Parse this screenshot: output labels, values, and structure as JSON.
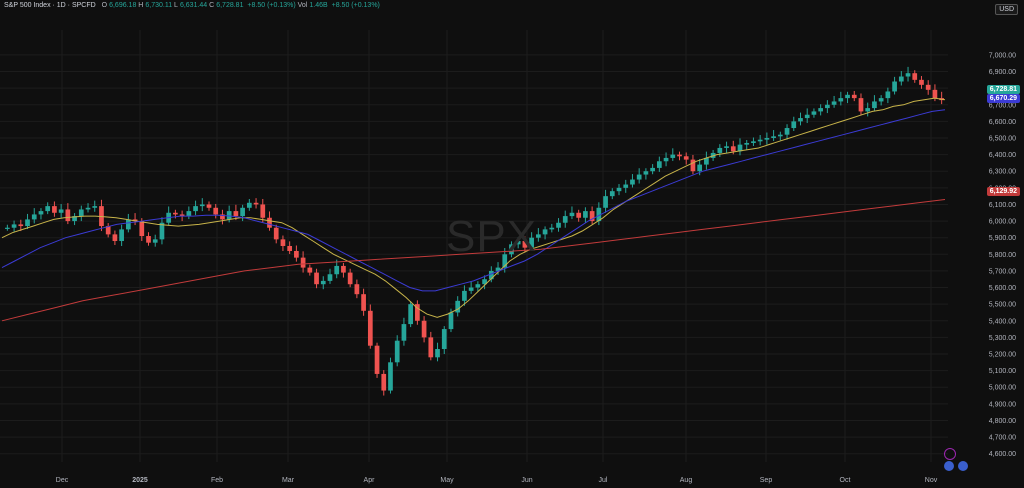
{
  "legend": {
    "symbol": "S&P 500 Index · 1D · SPCFD",
    "open_label": "O",
    "open": "6,696.18",
    "high_label": "H",
    "high": "6,730.11",
    "low_label": "L",
    "low": "6,631.44",
    "close_label": "C",
    "close": "6,728.81",
    "change": "+8.50 (+0.13%)",
    "vol_label": "Vol",
    "vol": "1.46B",
    "change2": "+8.50 (+0.13%)"
  },
  "currency": "USD",
  "watermark": "SPX",
  "badges": {
    "price": "6,728.81",
    "ma_blue": "6,670.29",
    "ma_red": "6,129.92"
  },
  "colors": {
    "up": "#26a69a",
    "down": "#ef5350",
    "ma_short": "#c8b44a",
    "ma_mid": "#3b3bd4",
    "ma_long": "#c23b3b"
  },
  "chart_data": {
    "type": "line",
    "title": "",
    "ylim": [
      4550,
      7150
    ],
    "y_ticks": [
      4600,
      4700,
      4800,
      4900,
      5000,
      5100,
      5200,
      5300,
      5400,
      5500,
      5600,
      5700,
      5800,
      5900,
      6000,
      6100,
      6200,
      6300,
      6400,
      6500,
      6600,
      6700,
      6800,
      6900,
      7000
    ],
    "x_labels": [
      "Dec",
      "2025",
      "Feb",
      "Mar",
      "Apr",
      "May",
      "Jun",
      "Jul",
      "Aug",
      "Sep",
      "Oct",
      "Nov"
    ],
    "price_series": [
      5960,
      5980,
      5970,
      6010,
      6040,
      6060,
      6090,
      6050,
      6070,
      6000,
      6030,
      6070,
      6080,
      6090,
      5970,
      5920,
      5880,
      5950,
      6010,
      6000,
      5910,
      5870,
      5890,
      5990,
      6050,
      6040,
      6030,
      6060,
      6090,
      6100,
      6080,
      6040,
      6010,
      6060,
      6030,
      6080,
      6110,
      6100,
      6020,
      5960,
      5890,
      5850,
      5820,
      5780,
      5720,
      5690,
      5620,
      5640,
      5680,
      5730,
      5690,
      5620,
      5560,
      5460,
      5250,
      5080,
      4980,
      5150,
      5280,
      5380,
      5500,
      5400,
      5300,
      5180,
      5230,
      5350,
      5450,
      5520,
      5580,
      5600,
      5620,
      5650,
      5700,
      5720,
      5800,
      5860,
      5880,
      5840,
      5900,
      5920,
      5950,
      5960,
      5990,
      6030,
      6050,
      6020,
      6060,
      6000,
      6080,
      6150,
      6180,
      6200,
      6220,
      6250,
      6280,
      6300,
      6320,
      6360,
      6380,
      6400,
      6390,
      6370,
      6300,
      6340,
      6380,
      6410,
      6440,
      6450,
      6420,
      6460,
      6470,
      6480,
      6490,
      6500,
      6510,
      6520,
      6560,
      6600,
      6620,
      6640,
      6660,
      6680,
      6700,
      6720,
      6740,
      6760,
      6740,
      6660,
      6680,
      6720,
      6740,
      6780,
      6840,
      6870,
      6890,
      6850,
      6820,
      6790,
      6740,
      6728
    ],
    "series": [
      {
        "values": [
          5900,
          5930,
          5950,
          5970,
          5990,
          6010,
          6020,
          6025,
          6030,
          6030,
          6025,
          6020,
          6010,
          6000,
          5990,
          5980,
          5975,
          5970,
          5975,
          5980,
          5990,
          6000,
          6010,
          6020,
          6020,
          6010,
          6000,
          5990,
          5960,
          5920,
          5880,
          5840,
          5800,
          5770,
          5740,
          5710,
          5680,
          5640,
          5590,
          5540,
          5480,
          5440,
          5420,
          5440,
          5470,
          5520,
          5580,
          5640,
          5700,
          5760,
          5800,
          5830,
          5850,
          5870,
          5890,
          5910,
          5940,
          5980,
          6020,
          6070,
          6110,
          6150,
          6190,
          6230,
          6270,
          6300,
          6330,
          6360,
          6380,
          6400,
          6410,
          6420,
          6430,
          6440,
          6460,
          6480,
          6500,
          6520,
          6540,
          6560,
          6580,
          6600,
          6620,
          6640,
          6660,
          6670,
          6690,
          6700,
          6720,
          6730,
          6740,
          6730
        ]
      },
      {
        "values": [
          5720,
          5760,
          5800,
          5840,
          5870,
          5900,
          5920,
          5940,
          5960,
          5980,
          5990,
          6000,
          6010,
          6020,
          6030,
          6030,
          6035,
          6035,
          6030,
          6020,
          6000,
          5980,
          5960,
          5940,
          5920,
          5880,
          5840,
          5800,
          5760,
          5720,
          5680,
          5640,
          5600,
          5580,
          5580,
          5600,
          5620,
          5640,
          5670,
          5700,
          5730,
          5760,
          5800,
          5850,
          5900,
          5950,
          6000,
          6040,
          6080,
          6120,
          6150,
          6180,
          6210,
          6240,
          6270,
          6300,
          6320,
          6340,
          6360,
          6380,
          6400,
          6420,
          6440,
          6460,
          6480,
          6500,
          6520,
          6540,
          6560,
          6580,
          6600,
          6620,
          6640,
          6660,
          6670
        ]
      },
      {
        "values": [
          5400,
          5440,
          5480,
          5520,
          5550,
          5580,
          5610,
          5640,
          5670,
          5700,
          5720,
          5740,
          5750,
          5760,
          5770,
          5780,
          5790,
          5800,
          5810,
          5820,
          5830,
          5850,
          5870,
          5890,
          5910,
          5930,
          5950,
          5970,
          5990,
          6010,
          6030,
          6050,
          6070,
          6090,
          6110,
          6130
        ]
      }
    ]
  }
}
